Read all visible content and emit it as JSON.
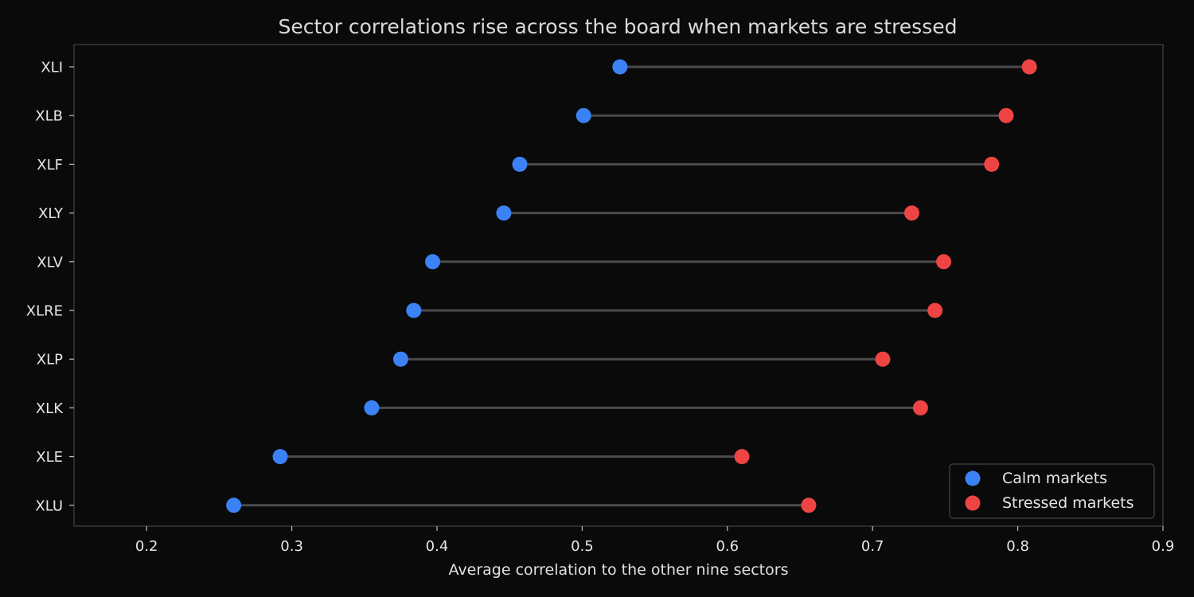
{
  "chart_data": {
    "type": "dumbbell",
    "title": "Sector correlations rise across the board when markets are stressed",
    "xlabel": "Average correlation to the other nine sectors",
    "ylabel": "",
    "xlim": [
      0.15,
      0.9
    ],
    "xticks": [
      "0.2",
      "0.3",
      "0.4",
      "0.5",
      "0.6",
      "0.7",
      "0.8",
      "0.9"
    ],
    "xtick_values": [
      0.2,
      0.3,
      0.4,
      0.5,
      0.6,
      0.7,
      0.8,
      0.9
    ],
    "grid": false,
    "legend_position": "bottom-right",
    "categories": [
      "XLI",
      "XLB",
      "XLF",
      "XLY",
      "XLV",
      "XLRE",
      "XLP",
      "XLK",
      "XLE",
      "XLU"
    ],
    "series": [
      {
        "name": "Calm markets",
        "color": "#3b82f6",
        "values": [
          0.526,
          0.501,
          0.457,
          0.446,
          0.397,
          0.384,
          0.375,
          0.355,
          0.292,
          0.26
        ]
      },
      {
        "name": "Stressed markets",
        "color": "#ef4444",
        "values": [
          0.808,
          0.792,
          0.782,
          0.727,
          0.749,
          0.743,
          0.707,
          0.733,
          0.61,
          0.656
        ]
      }
    ],
    "connector_color": "#4a4a4f"
  }
}
